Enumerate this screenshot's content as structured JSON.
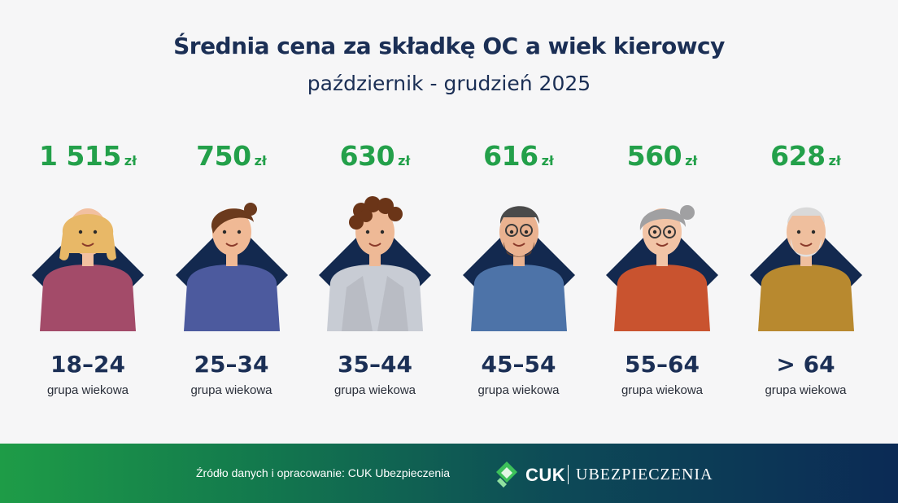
{
  "header": {
    "title": "Średnia cena za składkę OC a wiek kierowcy",
    "subtitle": "październik - grudzień 2025"
  },
  "colors": {
    "title": "#1b2f55",
    "price": "#23a04a",
    "diamond": "#13294f",
    "footer_start": "#1e9c47",
    "footer_end": "#0b2a55"
  },
  "chart_data": {
    "type": "bar",
    "categories": [
      "18-24",
      "25-34",
      "35-44",
      "45-54",
      "55-64",
      "> 64"
    ],
    "values": [
      1515,
      750,
      630,
      616,
      560,
      628
    ],
    "title": "Średnia cena za składkę OC a wiek kierowcy",
    "subtitle": "październik - grudzień 2025"
  },
  "groups": [
    {
      "price": "1 515",
      "unit": "zł",
      "age": "18–24",
      "label": "grupa wiekowa",
      "icon": "young-woman-icon",
      "shirt": "#a34b69",
      "hair": "#e8b867",
      "skin": "#f2c0a0"
    },
    {
      "price": "750",
      "unit": "zł",
      "age": "25–34",
      "label": "grupa wiekowa",
      "icon": "young-man-icon",
      "shirt": "#4c5a9e",
      "hair": "#6b3a1d",
      "skin": "#f0b995"
    },
    {
      "price": "630",
      "unit": "zł",
      "age": "35–44",
      "label": "grupa wiekowa",
      "icon": "woman-blazer-icon",
      "shirt": "#c8ccd4",
      "hair": "#6b3518",
      "skin": "#eeb996"
    },
    {
      "price": "616",
      "unit": "zł",
      "age": "45–54",
      "label": "grupa wiekowa",
      "icon": "bearded-man-glasses-icon",
      "shirt": "#4d73a8",
      "hair": "#4a4a4a",
      "skin": "#eab290"
    },
    {
      "price": "560",
      "unit": "zł",
      "age": "55–64",
      "label": "grupa wiekowa",
      "icon": "older-woman-glasses-icon",
      "shirt": "#c9532f",
      "hair": "#a0a0a2",
      "skin": "#f2c4a6"
    },
    {
      "price": "628",
      "unit": "zł",
      "age": "> 64",
      "label": "grupa wiekowa",
      "icon": "senior-man-icon",
      "shirt": "#b8892f",
      "hair": "#d9d9d9",
      "skin": "#efbf9e"
    }
  ],
  "footer": {
    "source": "Źródło danych i opracowanie: CUK Ubezpieczenia",
    "logo_cuk": "CUK",
    "logo_ubezpieczenia": "UBEZPIECZENIA",
    "logo_icon": "cuk-logo-icon"
  }
}
